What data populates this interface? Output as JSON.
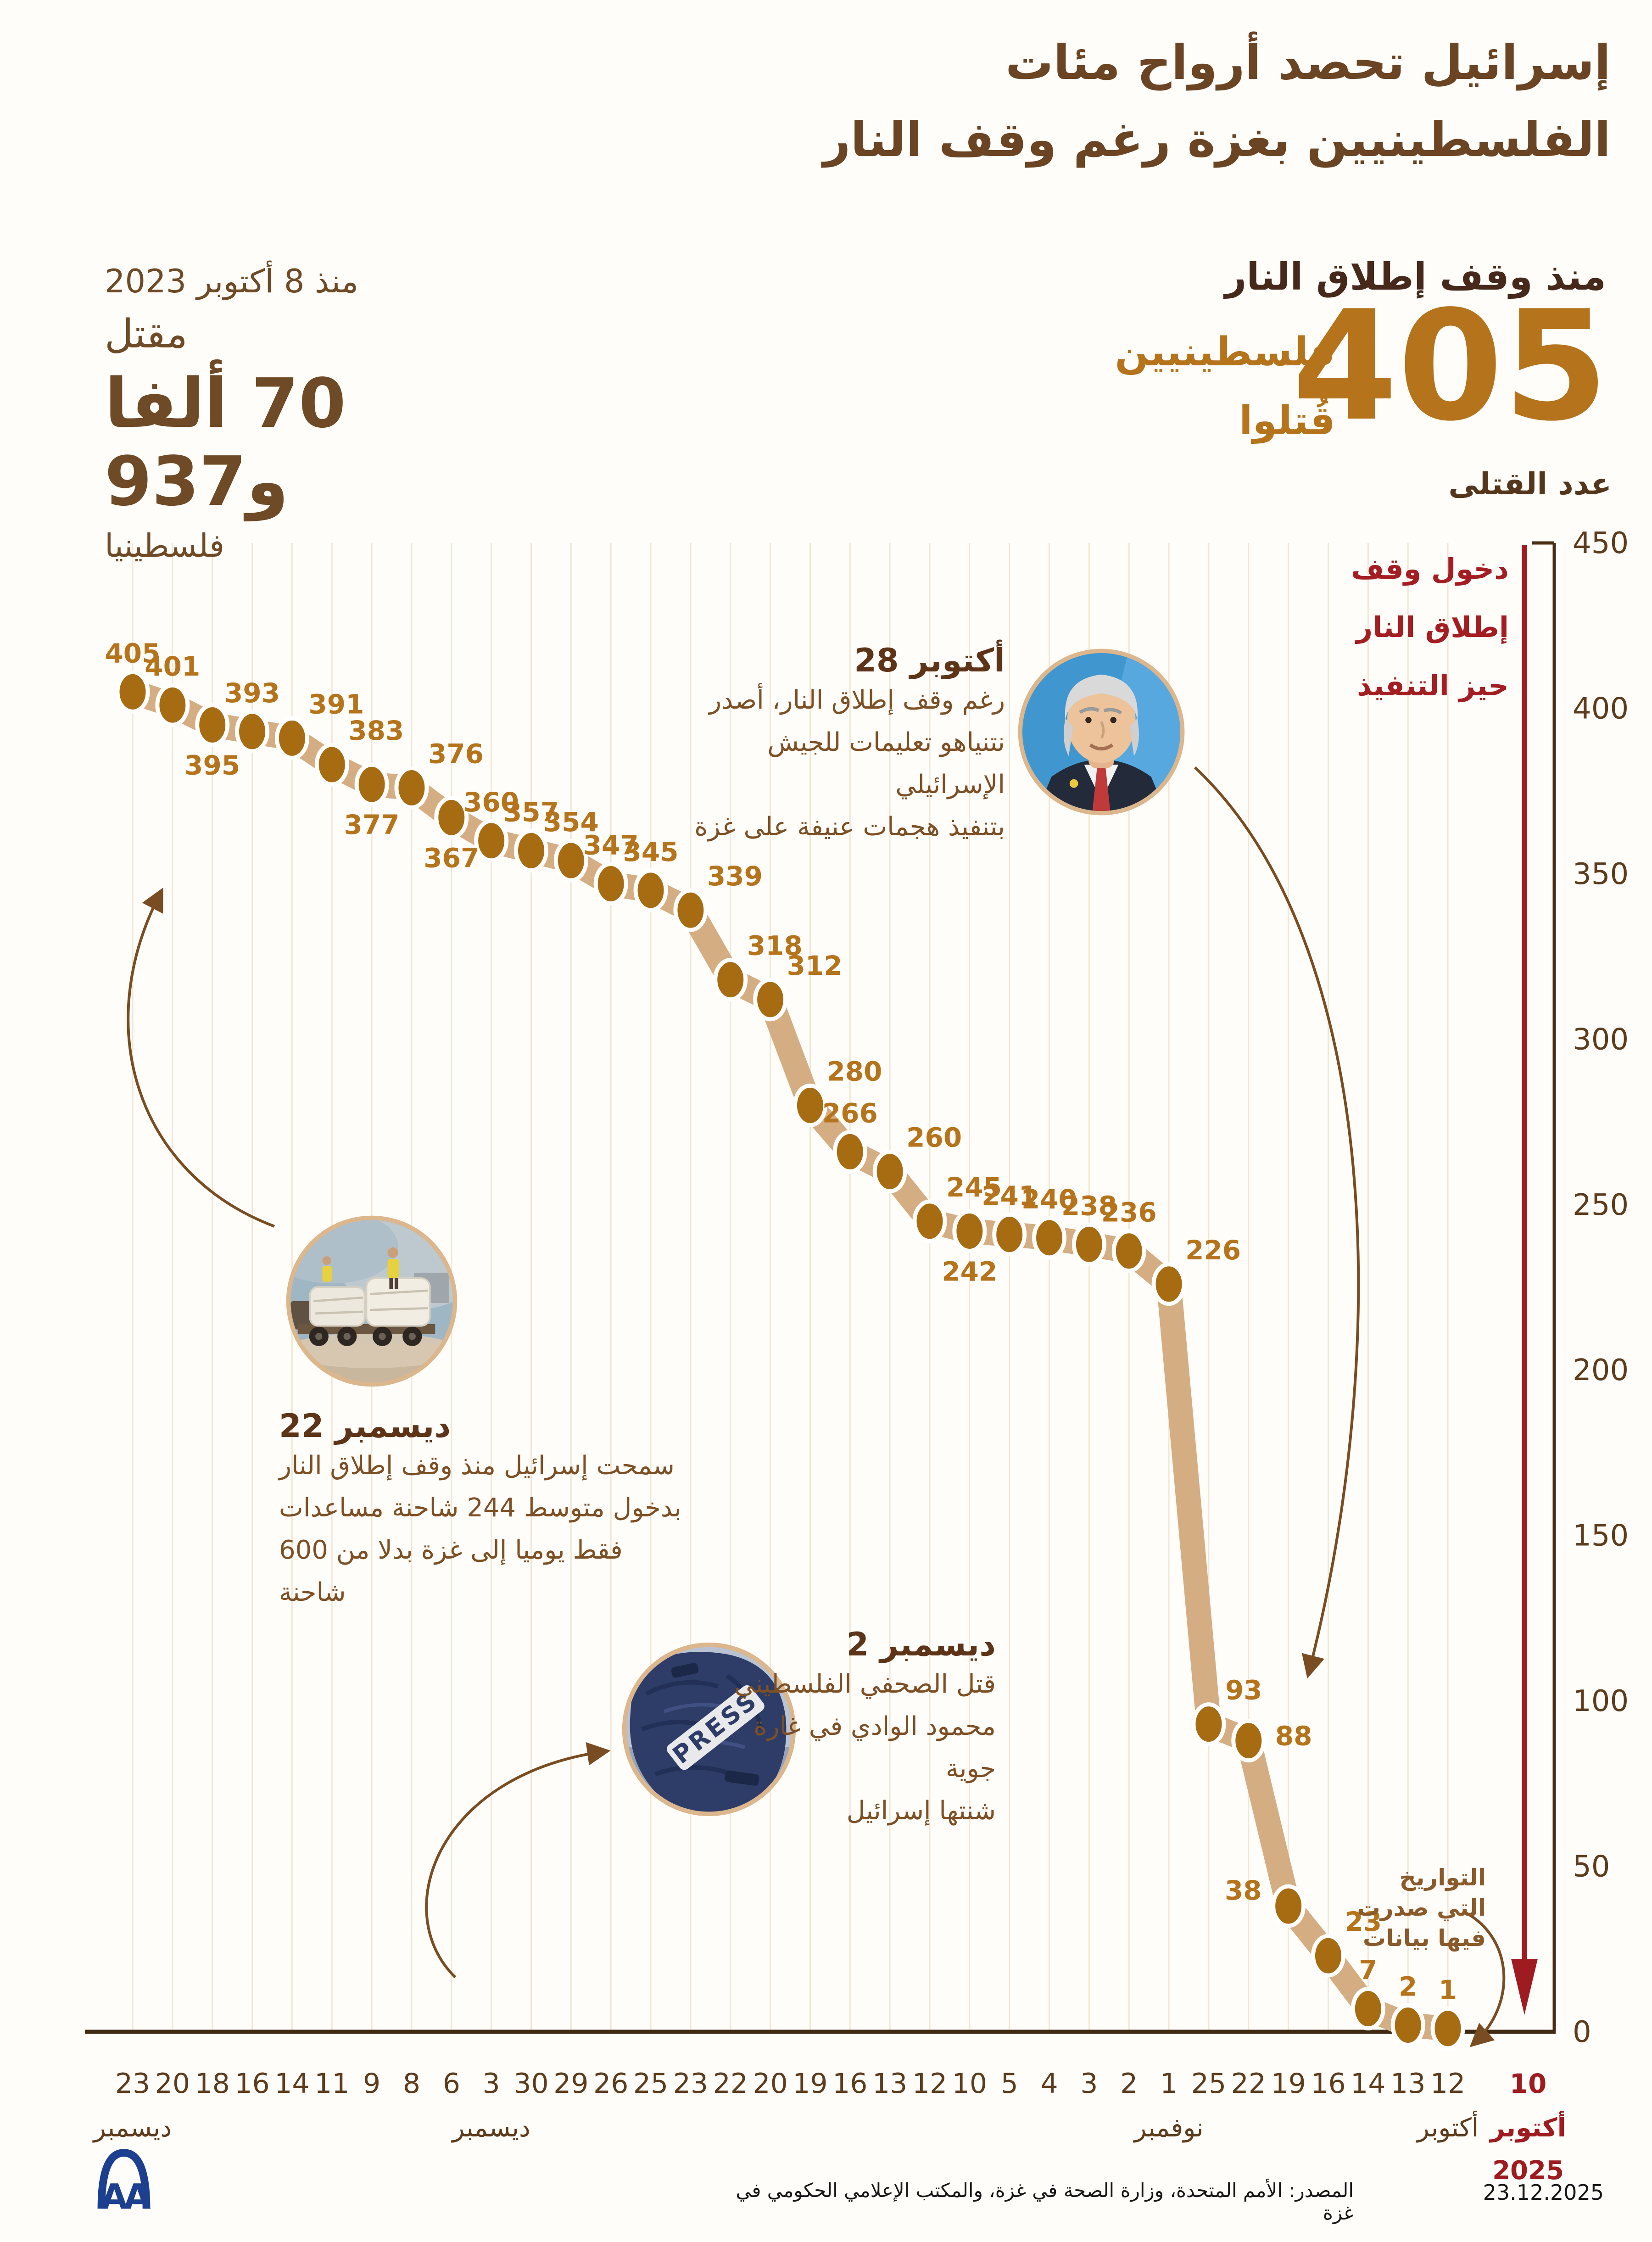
{
  "title": {
    "line1": "إسرائيل تحصد أرواح مئات",
    "line2": "الفلسطينيين بغزة رغم وقف النار"
  },
  "stats_right": {
    "heading": "منذ وقف إطلاق النار",
    "number": "405",
    "label_line1": "فلسطينيين",
    "label_line2": "قُتلوا"
  },
  "stats_left": {
    "since": "منذ 8 أكتوبر 2023",
    "killed_word": "مقتل",
    "number": "70 ألفا و937",
    "unit": "فلسطينيا"
  },
  "colors": {
    "title_brown": "#6a4423",
    "gold": "#b5741c",
    "band_tan": "#d5ad82",
    "dot_brown": "#a76c12",
    "axis_brown": "#4a2c12",
    "grid_cream": "#f1e7d7",
    "red": "#9e1b20",
    "photo_ring": "#dcb68c",
    "logo_blue": "#1d3f8f"
  },
  "chart_data": {
    "type": "line",
    "ylabel": "عدد القتلى",
    "ylim": [
      0,
      450
    ],
    "ytick_step": 50,
    "grid": true,
    "ceasefire_note": {
      "line1": "دخول وقف",
      "line2": "إطلاق النار",
      "line3": "حيز التنفيذ"
    },
    "dates_note": {
      "line1": "التواريخ",
      "line2": "التي صدرت",
      "line3": "فيها بيانات"
    },
    "x_axis_note_red": {
      "day": "10",
      "month": "أكتوبر",
      "year": "2025"
    },
    "points": [
      {
        "day": "23",
        "month": "ديسمبر",
        "value": 405,
        "lp": "a"
      },
      {
        "day": "20",
        "value": 401,
        "lp": "a"
      },
      {
        "day": "18",
        "value": 395,
        "lp": "b"
      },
      {
        "day": "16",
        "value": 393,
        "lp": "a"
      },
      {
        "day": "14",
        "value": 391,
        "lp": "ar"
      },
      {
        "day": "11",
        "value": 383,
        "lp": "ar"
      },
      {
        "day": "9",
        "value": 377,
        "lp": "b"
      },
      {
        "day": "8",
        "value": 376,
        "lp": "ar"
      },
      {
        "day": "6",
        "value": 367,
        "lp": "b"
      },
      {
        "day": "3",
        "month": "ديسمبر",
        "value": 360,
        "lp": "a"
      },
      {
        "day": "30",
        "value": 357,
        "lp": "a"
      },
      {
        "day": "29",
        "value": 354,
        "lp": "a"
      },
      {
        "day": "26",
        "value": 347,
        "lp": "a"
      },
      {
        "day": "25",
        "value": 345,
        "lp": "a"
      },
      {
        "day": "23",
        "value": 339,
        "lp": "ar"
      },
      {
        "day": "22",
        "value": 318,
        "lp": "ar"
      },
      {
        "day": "20",
        "value": 312,
        "lp": "ar"
      },
      {
        "day": "19",
        "value": 280,
        "lp": "ar"
      },
      {
        "day": "16",
        "value": 266,
        "lp": "a"
      },
      {
        "day": "13",
        "value": 260,
        "lp": "ar"
      },
      {
        "day": "12",
        "value": 245,
        "lp": "ar"
      },
      {
        "day": "10",
        "value": 242,
        "lp": "b"
      },
      {
        "day": "5",
        "value": 241,
        "lp": "a"
      },
      {
        "day": "4",
        "value": 240,
        "lp": "a"
      },
      {
        "day": "3",
        "value": 238,
        "lp": "a"
      },
      {
        "day": "2",
        "value": 236,
        "lp": "a"
      },
      {
        "day": "1",
        "month": "نوفمبر",
        "value": 226,
        "lp": "ar"
      },
      {
        "day": "25",
        "value": 93,
        "lp": "ar"
      },
      {
        "day": "22",
        "value": 88,
        "lp": "r"
      },
      {
        "day": "19",
        "value": 38,
        "lp": "l"
      },
      {
        "day": "16",
        "value": 23,
        "lp": "ar"
      },
      {
        "day": "14",
        "value": 7,
        "lp": "a"
      },
      {
        "day": "13",
        "value": 2,
        "lp": "a"
      },
      {
        "day": "12",
        "month": "أكتوبر",
        "value": 1,
        "lp": "a"
      }
    ]
  },
  "annotations": {
    "netanyahu": {
      "heading": "28 أكتوبر",
      "line1": "رغم وقف إطلاق النار، أصدر",
      "line2": "نتنياهو تعليمات للجيش الإسرائيلي",
      "line3": "بتنفيذ هجمات عنيفة على غزة"
    },
    "trucks": {
      "heading": "22 ديسمبر",
      "line1": "سمحت إسرائيل منذ وقف إطلاق النار",
      "line2": "بدخول متوسط 244 شاحنة مساعدات",
      "line3": "فقط يوميا إلى غزة بدلا من 600 شاحنة"
    },
    "journalist": {
      "heading": "2 ديسمبر",
      "line1": "قتل الصحفي الفلسطيني",
      "line2": "محمود الوادي في غارة جوية",
      "line3": "شنتها إسرائيل"
    },
    "press_vest_label": "PRESS"
  },
  "footer": {
    "source": "المصدر: الأمم المتحدة، وزارة الصحة في غزة، والمكتب الإعلامي الحكومي في غزة",
    "date": "23.12.2025",
    "logo": "AA"
  }
}
